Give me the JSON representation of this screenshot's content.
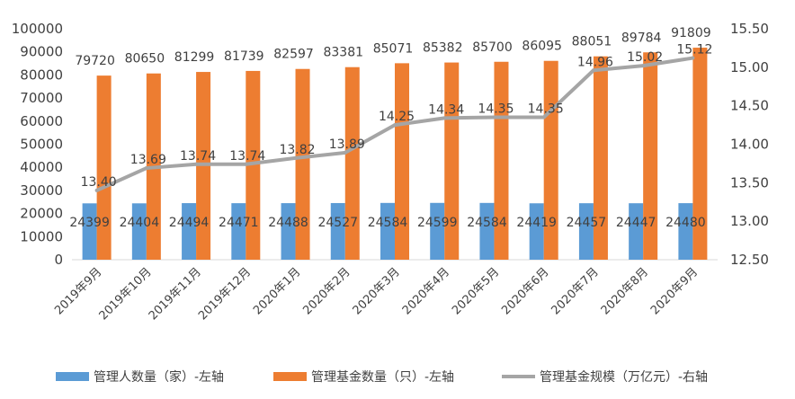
{
  "chart_data": {
    "type": "bar",
    "categories": [
      "2019年9月",
      "2019年10月",
      "2019年11月",
      "2019年12月",
      "2020年1月",
      "2020年2月",
      "2020年3月",
      "2020年4月",
      "2020年5月",
      "2020年6月",
      "2020年7月",
      "2020年8月",
      "2020年9月"
    ],
    "series": [
      {
        "name": "管理人数量（家）-左轴",
        "type": "bar",
        "axis": "left",
        "color": "#5b9bd5",
        "values": [
          24399,
          24404,
          24494,
          24471,
          24488,
          24527,
          24584,
          24599,
          24584,
          24419,
          24457,
          24447,
          24480
        ]
      },
      {
        "name": "管理基金数量（只）-左轴",
        "type": "bar",
        "axis": "left",
        "color": "#ed7d31",
        "values": [
          79720,
          80650,
          81299,
          81739,
          82597,
          83381,
          85071,
          85382,
          85700,
          86095,
          88051,
          89784,
          91809
        ]
      },
      {
        "name": "管理基金规模（万亿元）-右轴",
        "type": "line",
        "axis": "right",
        "color": "#a5a5a5",
        "values": [
          13.4,
          13.69,
          13.74,
          13.74,
          13.82,
          13.89,
          14.25,
          14.34,
          14.35,
          14.35,
          14.96,
          15.02,
          15.12
        ],
        "labels": [
          "13.40",
          "13.69",
          "13.74",
          "13.74",
          "13.82",
          "13.89",
          "14.25",
          "14.34",
          "14.35",
          "14.35",
          "14.96",
          "15.02",
          "15.12"
        ]
      }
    ],
    "y_left": {
      "min": 0,
      "max": 100000,
      "step": 10000,
      "ticks": [
        "0",
        "10000",
        "20000",
        "30000",
        "40000",
        "50000",
        "60000",
        "70000",
        "80000",
        "90000",
        "100000"
      ]
    },
    "y_right": {
      "min": 12.5,
      "max": 15.5,
      "step": 0.5,
      "ticks": [
        "12.50",
        "13.00",
        "13.50",
        "14.00",
        "14.50",
        "15.00",
        "15.50"
      ]
    },
    "grid": false,
    "legend_position": "bottom"
  }
}
